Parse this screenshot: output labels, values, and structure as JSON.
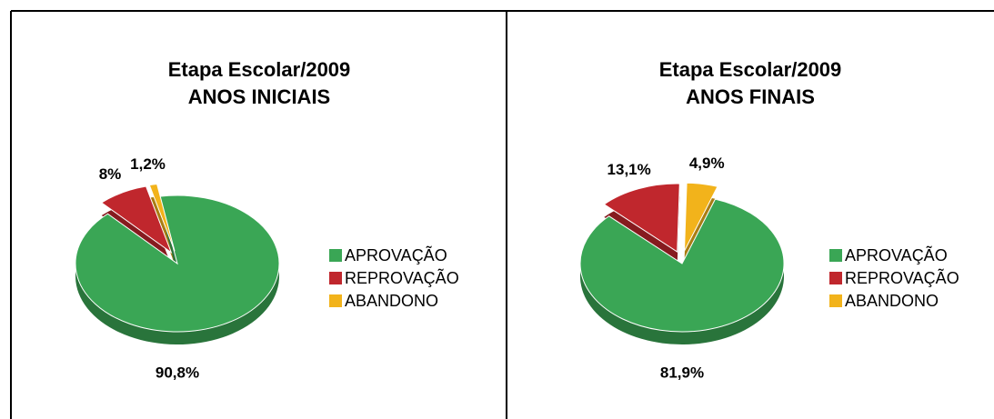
{
  "chart_data": [
    {
      "type": "pie",
      "title": "Etapa Escolar/2009",
      "subtitle": "ANOS INICIAIS",
      "categories": [
        "APROVAÇÃO",
        "REPROVAÇÃO",
        "ABANDONO"
      ],
      "values": [
        90.8,
        8,
        1.2
      ],
      "value_labels": [
        "90,8%",
        "8%",
        "1,2%"
      ],
      "colors": [
        "#3aa655",
        "#c0272d",
        "#f2b31b"
      ]
    },
    {
      "type": "pie",
      "title": "Etapa Escolar/2009",
      "subtitle": "ANOS FINAIS",
      "categories": [
        "APROVAÇÃO",
        "REPROVAÇÃO",
        "ABANDONO"
      ],
      "values": [
        81.9,
        13.1,
        4.9
      ],
      "value_labels": [
        "81,9%",
        "13,1%",
        "4,9%"
      ],
      "colors": [
        "#3aa655",
        "#c0272d",
        "#f2b31b"
      ]
    }
  ]
}
